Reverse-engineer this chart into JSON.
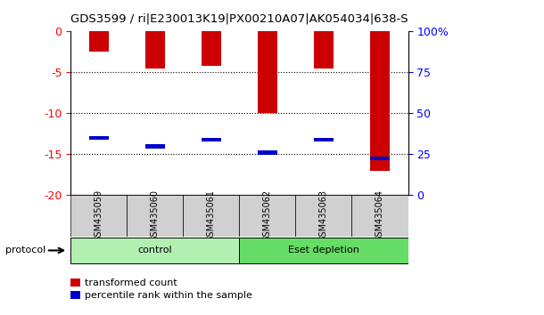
{
  "title": "GDS3599 / ri|E230013K19|PX00210A07|AK054034|638-S",
  "samples": [
    "GSM435059",
    "GSM435060",
    "GSM435061",
    "GSM435062",
    "GSM435063",
    "GSM435064"
  ],
  "red_values": [
    -2.5,
    -4.5,
    -4.2,
    -10.0,
    -4.5,
    -17.0
  ],
  "blue_values": [
    -13.0,
    -14.0,
    -13.2,
    -14.8,
    -13.2,
    -15.5
  ],
  "yticks_left": [
    0,
    -5,
    -10,
    -15,
    -20
  ],
  "yticks_right": [
    100,
    75,
    50,
    25,
    0
  ],
  "right_labels": [
    "100%",
    "75",
    "50",
    "25",
    "0"
  ],
  "groups": [
    {
      "label": "control",
      "start": 0,
      "end": 2,
      "color": "#b2f0b2"
    },
    {
      "label": "Eset depletion",
      "start": 3,
      "end": 5,
      "color": "#66dd66"
    }
  ],
  "bar_color": "#cc0000",
  "dot_color": "#0000cc",
  "background_color": "#ffffff",
  "plot_bg_color": "#ffffff",
  "bar_width": 0.35,
  "legend_items": [
    {
      "label": "transformed count",
      "color": "#cc0000"
    },
    {
      "label": "percentile rank within the sample",
      "color": "#0000cc"
    }
  ]
}
